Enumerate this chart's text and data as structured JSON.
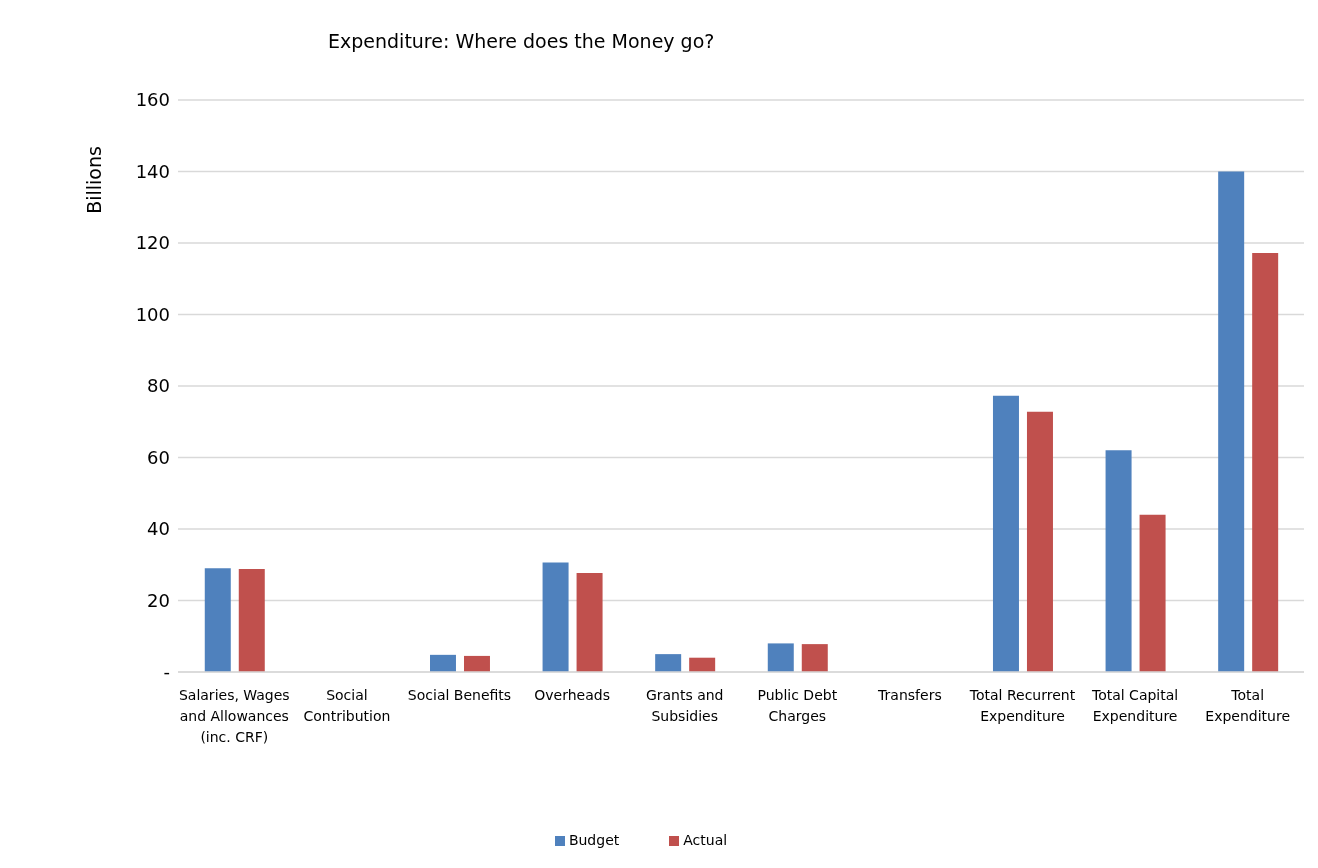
{
  "chart_data": {
    "type": "bar",
    "title": "Expenditure: Where does the Money go?",
    "ylabel": "Billions",
    "categories": [
      "Salaries, Wages and Allowances (inc. CRF)",
      "Social Contribution",
      "Social Benefits",
      "Overheads",
      "Grants and Subsidies",
      "Public Debt Charges",
      "Transfers",
      "Total Recurrent Expenditure",
      "Total Capital Expenditure",
      "Total Expenditure"
    ],
    "series": [
      {
        "name": "Budget",
        "color": "#4f81bd",
        "values": [
          29.0,
          0,
          4.8,
          30.6,
          5.0,
          8.0,
          0,
          77.3,
          62.0,
          140
        ]
      },
      {
        "name": "Actual",
        "color": "#c0504d",
        "values": [
          28.8,
          0,
          4.5,
          27.7,
          4.0,
          7.8,
          0,
          72.8,
          44.0,
          117.2
        ]
      }
    ],
    "ylim": [
      0,
      160
    ],
    "yticks": [
      {
        "value": 0,
        "label": "-"
      },
      20,
      40,
      60,
      80,
      100,
      120,
      140,
      160
    ],
    "grid": "y",
    "legend": "bottom"
  }
}
